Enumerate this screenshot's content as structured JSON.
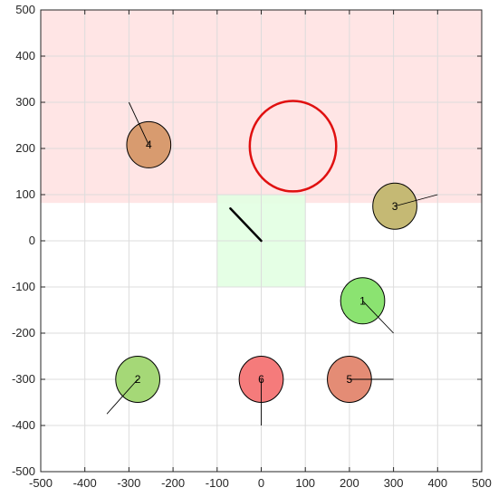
{
  "chart_data": {
    "type": "scatter",
    "title": "",
    "xlabel": "",
    "ylabel": "",
    "xlim": [
      -500,
      500
    ],
    "ylim": [
      -500,
      500
    ],
    "grid": true,
    "x_ticks": [
      -500,
      -400,
      -300,
      -200,
      -100,
      0,
      100,
      200,
      300,
      400,
      500
    ],
    "y_ticks": [
      -500,
      -400,
      -300,
      -200,
      -100,
      0,
      100,
      200,
      300,
      400,
      500
    ],
    "regions": [
      {
        "kind": "band",
        "x": [
          -500,
          500
        ],
        "y": [
          82,
          500
        ],
        "color": "#ffe2e2"
      },
      {
        "kind": "box",
        "x": [
          -100,
          100
        ],
        "y": [
          -100,
          100
        ],
        "color": "#e2ffe2"
      }
    ],
    "target": {
      "x": 72,
      "y": 205,
      "r": 98,
      "color": "#e01010"
    },
    "center_segment": {
      "x1": 0,
      "y1": 0,
      "x2": -70,
      "y2": 70,
      "color": "#000000"
    },
    "agents": [
      {
        "label": "1",
        "x": 230,
        "y": -130,
        "r": 50,
        "fill": "#8be371",
        "heading_to": [
          300,
          -200
        ]
      },
      {
        "label": "2",
        "x": -280,
        "y": -300,
        "r": 50,
        "fill": "#a5d877",
        "heading_to": [
          -350,
          -375
        ]
      },
      {
        "label": "3",
        "x": 303,
        "y": 75,
        "r": 50,
        "fill": "#c5b974",
        "heading_to": [
          400,
          100
        ]
      },
      {
        "label": "4",
        "x": -255,
        "y": 208,
        "r": 50,
        "fill": "#d89b6f",
        "heading_to": [
          -300,
          300
        ]
      },
      {
        "label": "5",
        "x": 200,
        "y": -300,
        "r": 50,
        "fill": "#e48c75",
        "heading_to": [
          300,
          -300
        ]
      },
      {
        "label": "6",
        "x": 0,
        "y": -300,
        "r": 50,
        "fill": "#f57b7b",
        "heading_to": [
          0,
          -400
        ]
      }
    ]
  }
}
